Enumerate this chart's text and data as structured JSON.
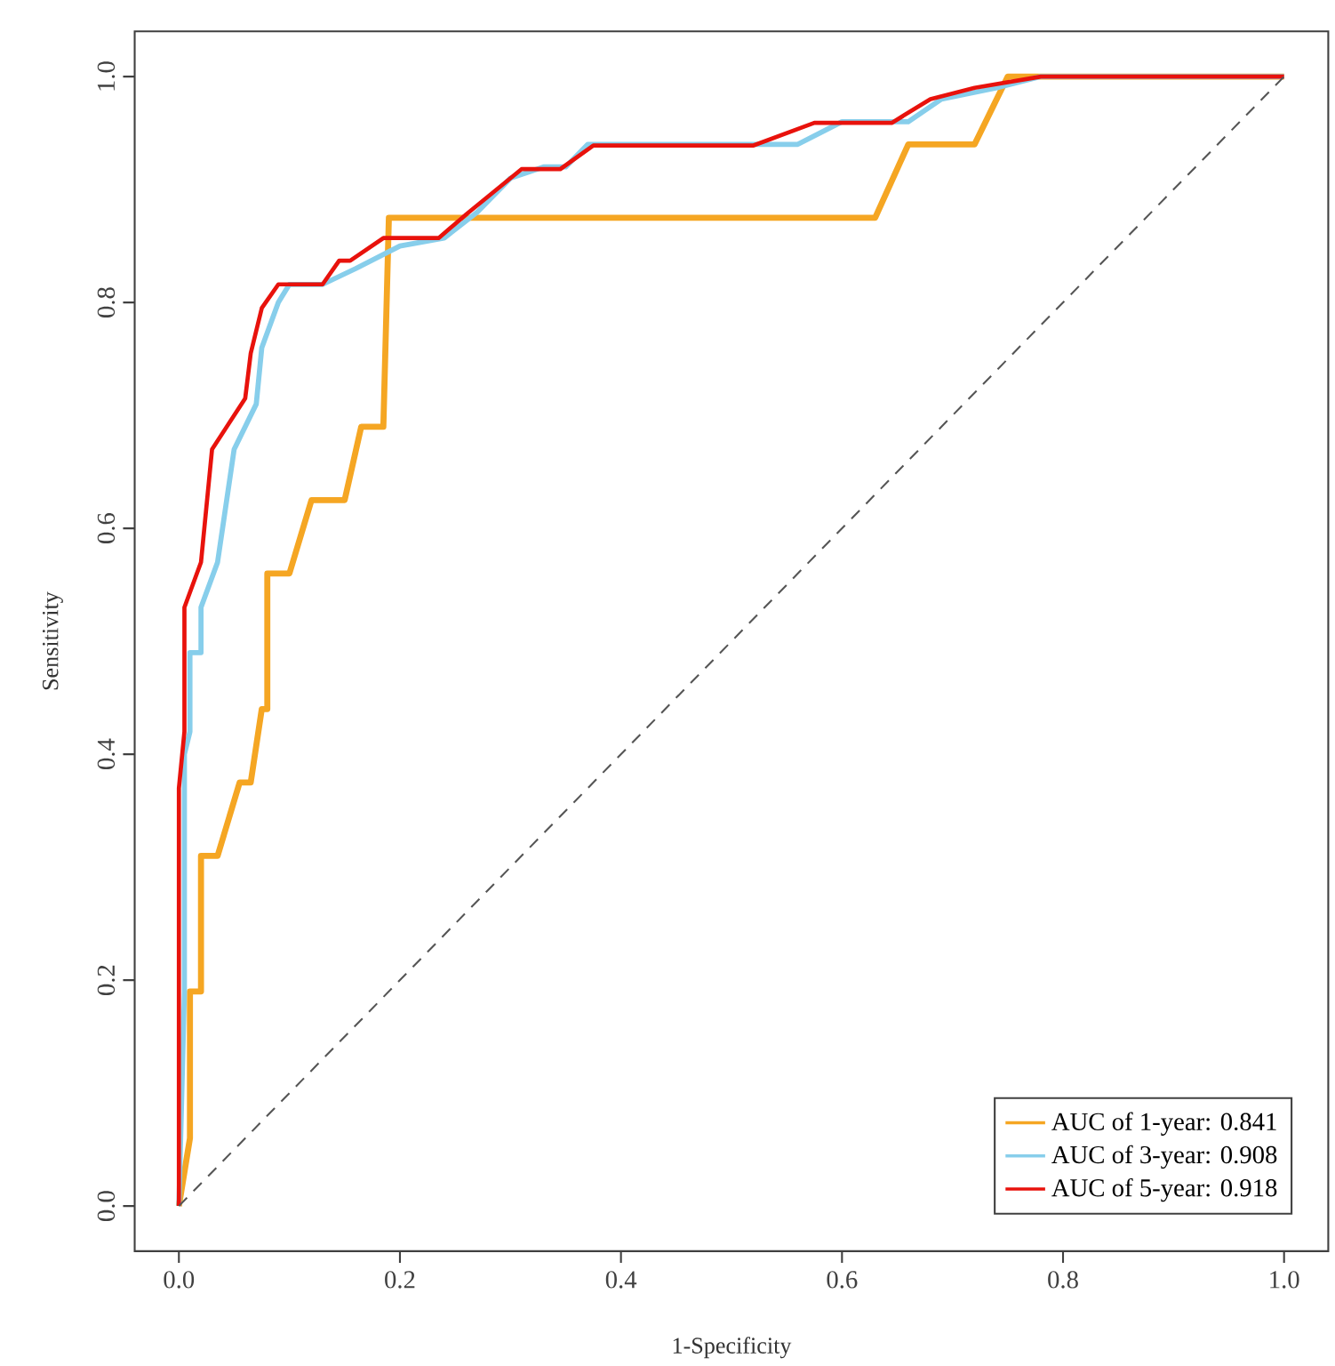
{
  "chart_data": {
    "type": "line",
    "xlabel": "1-Specificity",
    "ylabel": "Sensitivity",
    "xlim": [
      -0.04,
      1.04
    ],
    "ylim": [
      -0.04,
      1.04
    ],
    "xticks": [
      {
        "value": 0,
        "label": "0.0"
      },
      0.2,
      0.4,
      0.6,
      0.8,
      {
        "value": 1,
        "label": "1.0"
      }
    ],
    "yticks": [
      {
        "value": 0,
        "label": "0.0"
      },
      0.2,
      0.4,
      0.6,
      0.8,
      {
        "value": 1,
        "label": "1.0"
      }
    ],
    "grid": false,
    "legend": "bottom right",
    "marker": "none",
    "line_style": "solid",
    "series": [
      {
        "name": "AUC of 1-year: 0.841",
        "color": "#f5a623",
        "x": [
          0,
          0.01,
          0.01,
          0.02,
          0.02,
          0.035,
          0.055,
          0.065,
          0.075,
          0.08,
          0.08,
          0.1,
          0.12,
          0.15,
          0.165,
          0.185,
          0.19,
          0.63,
          0.66,
          0.72,
          0.75,
          1
        ],
        "values": [
          0,
          0.06,
          0.19,
          0.19,
          0.31,
          0.31,
          0.375,
          0.375,
          0.44,
          0.44,
          0.56,
          0.56,
          0.625,
          0.625,
          0.69,
          0.69,
          0.875,
          0.875,
          0.94,
          0.94,
          1.0,
          1.0
        ]
      },
      {
        "name": "AUC of 3-year: 0.908",
        "color": "#87ceeb",
        "x": [
          0,
          0.005,
          0.005,
          0.01,
          0.01,
          0.02,
          0.02,
          0.035,
          0.05,
          0.07,
          0.075,
          0.09,
          0.1,
          0.13,
          0.16,
          0.2,
          0.24,
          0.27,
          0.3,
          0.33,
          0.35,
          0.37,
          0.56,
          0.6,
          0.66,
          0.69,
          0.74,
          0.78,
          1
        ],
        "values": [
          0,
          0.19,
          0.4,
          0.42,
          0.49,
          0.49,
          0.53,
          0.57,
          0.67,
          0.71,
          0.76,
          0.8,
          0.816,
          0.816,
          0.83,
          0.85,
          0.857,
          0.88,
          0.91,
          0.92,
          0.92,
          0.94,
          0.94,
          0.96,
          0.96,
          0.98,
          0.99,
          1.0,
          1.0
        ]
      },
      {
        "name": "AUC of 5-year: 0.918",
        "color": "#e8120c",
        "x": [
          0,
          0,
          0.005,
          0.005,
          0.02,
          0.03,
          0.06,
          0.065,
          0.075,
          0.09,
          0.13,
          0.145,
          0.155,
          0.185,
          0.235,
          0.26,
          0.31,
          0.345,
          0.375,
          0.52,
          0.575,
          0.645,
          0.68,
          0.72,
          0.78,
          1
        ],
        "values": [
          0,
          0.37,
          0.42,
          0.53,
          0.57,
          0.67,
          0.715,
          0.755,
          0.795,
          0.816,
          0.816,
          0.837,
          0.837,
          0.857,
          0.857,
          0.878,
          0.918,
          0.918,
          0.939,
          0.939,
          0.959,
          0.959,
          0.98,
          0.99,
          1.0,
          1.0
        ]
      },
      {
        "color": "#555555",
        "line_style": "dashed",
        "x": [
          0,
          1
        ],
        "values": [
          0,
          1
        ]
      }
    ]
  }
}
